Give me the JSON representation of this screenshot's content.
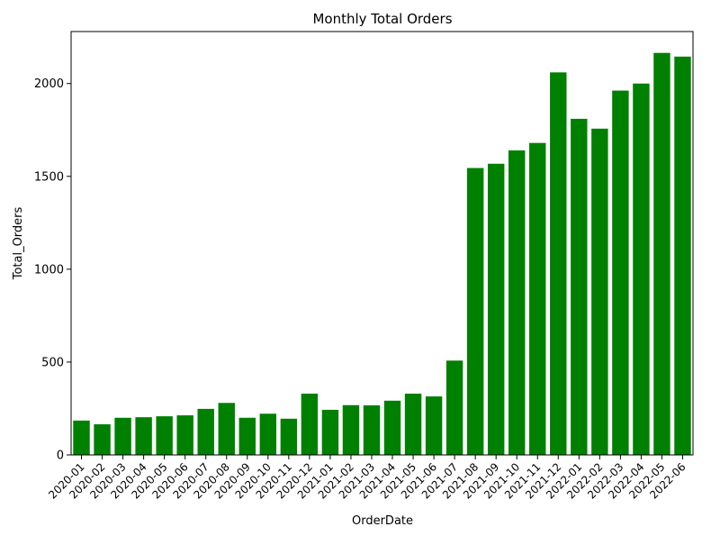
{
  "chart_data": {
    "type": "bar",
    "title": "Monthly Total Orders",
    "xlabel": "OrderDate",
    "ylabel": "Total_Orders",
    "ylim": [
      0,
      2280
    ],
    "yticks": [
      0,
      500,
      1000,
      1500,
      2000
    ],
    "grid": false,
    "bar_color": "#008000",
    "categories": [
      "2020-01",
      "2020-02",
      "2020-03",
      "2020-04",
      "2020-05",
      "2020-06",
      "2020-07",
      "2020-08",
      "2020-09",
      "2020-10",
      "2020-11",
      "2020-12",
      "2021-01",
      "2021-02",
      "2021-03",
      "2021-04",
      "2021-05",
      "2021-06",
      "2021-07",
      "2021-08",
      "2021-09",
      "2021-10",
      "2021-11",
      "2021-12",
      "2022-01",
      "2022-02",
      "2022-03",
      "2022-04",
      "2022-05",
      "2022-06"
    ],
    "values": [
      185,
      165,
      200,
      203,
      208,
      213,
      248,
      280,
      200,
      222,
      195,
      330,
      243,
      268,
      267,
      292,
      330,
      315,
      508,
      1545,
      1568,
      1640,
      1680,
      2060,
      1810,
      1757,
      1962,
      2000,
      2165,
      2145
    ]
  }
}
